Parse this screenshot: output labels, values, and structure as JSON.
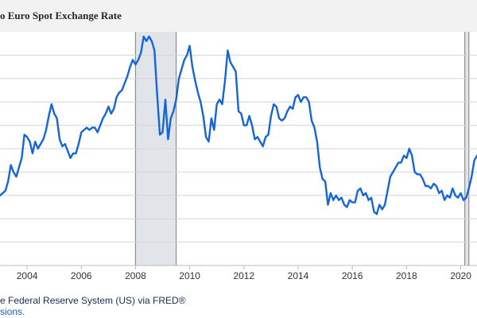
{
  "chart_data": {
    "type": "line",
    "title": "o Euro Spot Exchange Rate",
    "xlabel": "",
    "ylabel": "",
    "x_tick_labels": [
      "2004",
      "2006",
      "2008",
      "2010",
      "2012",
      "2014",
      "2016",
      "2018",
      "2020"
    ],
    "x_range": [
      2003.0,
      2020.6
    ],
    "y_range": [
      0,
      10
    ],
    "y_gridlines": [
      1,
      2,
      3,
      4,
      5,
      6,
      7,
      8,
      9
    ],
    "grid": true,
    "recession_bands": [
      [
        2008.0,
        2009.5
      ],
      [
        2020.15,
        2020.3
      ]
    ],
    "line_color": "#1565d8",
    "series": [
      {
        "values": [
          [
            2003.0,
            3.0
          ],
          [
            2003.1,
            3.1
          ],
          [
            2003.2,
            3.2
          ],
          [
            2003.3,
            3.6
          ],
          [
            2003.4,
            4.3
          ],
          [
            2003.5,
            4.0
          ],
          [
            2003.6,
            3.8
          ],
          [
            2003.7,
            4.2
          ],
          [
            2003.8,
            4.6
          ],
          [
            2003.9,
            5.6
          ],
          [
            2004.0,
            5.5
          ],
          [
            2004.1,
            5.3
          ],
          [
            2004.2,
            4.8
          ],
          [
            2004.3,
            5.3
          ],
          [
            2004.4,
            5.0
          ],
          [
            2004.5,
            5.2
          ],
          [
            2004.6,
            5.4
          ],
          [
            2004.7,
            5.8
          ],
          [
            2004.8,
            6.4
          ],
          [
            2004.9,
            6.9
          ],
          [
            2005.0,
            6.5
          ],
          [
            2005.1,
            6.3
          ],
          [
            2005.2,
            5.4
          ],
          [
            2005.3,
            5.1
          ],
          [
            2005.4,
            5.2
          ],
          [
            2005.5,
            4.9
          ],
          [
            2005.6,
            4.6
          ],
          [
            2005.7,
            4.8
          ],
          [
            2005.8,
            4.8
          ],
          [
            2005.9,
            5.2
          ],
          [
            2006.0,
            5.7
          ],
          [
            2006.1,
            5.8
          ],
          [
            2006.2,
            5.9
          ],
          [
            2006.3,
            5.8
          ],
          [
            2006.4,
            5.9
          ],
          [
            2006.5,
            5.9
          ],
          [
            2006.6,
            5.7
          ],
          [
            2006.7,
            6.0
          ],
          [
            2006.8,
            6.3
          ],
          [
            2006.9,
            6.5
          ],
          [
            2007.0,
            6.8
          ],
          [
            2007.1,
            6.5
          ],
          [
            2007.2,
            6.7
          ],
          [
            2007.3,
            7.2
          ],
          [
            2007.4,
            7.4
          ],
          [
            2007.5,
            7.5
          ],
          [
            2007.6,
            7.8
          ],
          [
            2007.7,
            8.1
          ],
          [
            2007.8,
            8.5
          ],
          [
            2007.9,
            8.8
          ],
          [
            2008.0,
            8.6
          ],
          [
            2008.1,
            8.8
          ],
          [
            2008.2,
            9.1
          ],
          [
            2008.3,
            9.8
          ],
          [
            2008.4,
            9.6
          ],
          [
            2008.5,
            9.8
          ],
          [
            2008.6,
            9.6
          ],
          [
            2008.7,
            9.2
          ],
          [
            2008.8,
            7.3
          ],
          [
            2008.9,
            5.6
          ],
          [
            2009.0,
            5.7
          ],
          [
            2009.1,
            7.1
          ],
          [
            2009.2,
            5.4
          ],
          [
            2009.3,
            6.3
          ],
          [
            2009.4,
            6.6
          ],
          [
            2009.5,
            7.1
          ],
          [
            2009.6,
            8.0
          ],
          [
            2009.7,
            8.4
          ],
          [
            2009.8,
            8.8
          ],
          [
            2009.9,
            9.0
          ],
          [
            2010.0,
            9.4
          ],
          [
            2010.1,
            8.5
          ],
          [
            2010.2,
            7.9
          ],
          [
            2010.3,
            7.4
          ],
          [
            2010.4,
            7.0
          ],
          [
            2010.5,
            6.4
          ],
          [
            2010.6,
            5.5
          ],
          [
            2010.7,
            5.3
          ],
          [
            2010.8,
            6.3
          ],
          [
            2010.9,
            5.8
          ],
          [
            2011.0,
            6.9
          ],
          [
            2011.1,
            7.1
          ],
          [
            2011.2,
            6.9
          ],
          [
            2011.3,
            7.9
          ],
          [
            2011.4,
            9.2
          ],
          [
            2011.5,
            8.7
          ],
          [
            2011.6,
            8.5
          ],
          [
            2011.7,
            8.3
          ],
          [
            2011.8,
            6.6
          ],
          [
            2011.9,
            6.5
          ],
          [
            2012.0,
            6.0
          ],
          [
            2012.1,
            6.0
          ],
          [
            2012.2,
            6.4
          ],
          [
            2012.3,
            6.0
          ],
          [
            2012.4,
            5.4
          ],
          [
            2012.5,
            5.5
          ],
          [
            2012.6,
            5.3
          ],
          [
            2012.7,
            5.1
          ],
          [
            2012.8,
            5.5
          ],
          [
            2012.9,
            5.6
          ],
          [
            2013.0,
            6.4
          ],
          [
            2013.1,
            6.9
          ],
          [
            2013.2,
            6.8
          ],
          [
            2013.3,
            6.3
          ],
          [
            2013.4,
            6.2
          ],
          [
            2013.5,
            6.3
          ],
          [
            2013.6,
            6.6
          ],
          [
            2013.7,
            6.8
          ],
          [
            2013.8,
            6.7
          ],
          [
            2013.9,
            7.2
          ],
          [
            2014.0,
            7.3
          ],
          [
            2014.1,
            7.0
          ],
          [
            2014.2,
            7.2
          ],
          [
            2014.3,
            7.2
          ],
          [
            2014.4,
            7.0
          ],
          [
            2014.5,
            6.2
          ],
          [
            2014.6,
            5.9
          ],
          [
            2014.7,
            5.3
          ],
          [
            2014.8,
            4.2
          ],
          [
            2014.9,
            3.7
          ],
          [
            2015.0,
            3.6
          ],
          [
            2015.1,
            2.6
          ],
          [
            2015.2,
            3.1
          ],
          [
            2015.3,
            2.8
          ],
          [
            2015.4,
            3.0
          ],
          [
            2015.5,
            2.8
          ],
          [
            2015.6,
            2.9
          ],
          [
            2015.7,
            2.6
          ],
          [
            2015.8,
            2.5
          ],
          [
            2015.9,
            2.8
          ],
          [
            2016.0,
            2.7
          ],
          [
            2016.1,
            2.7
          ],
          [
            2016.2,
            3.2
          ],
          [
            2016.3,
            3.3
          ],
          [
            2016.4,
            3.0
          ],
          [
            2016.5,
            3.1
          ],
          [
            2016.6,
            2.8
          ],
          [
            2016.7,
            2.9
          ],
          [
            2016.8,
            2.3
          ],
          [
            2016.9,
            2.2
          ],
          [
            2017.0,
            2.6
          ],
          [
            2017.1,
            2.4
          ],
          [
            2017.2,
            2.6
          ],
          [
            2017.3,
            3.2
          ],
          [
            2017.4,
            3.8
          ],
          [
            2017.5,
            4.0
          ],
          [
            2017.6,
            4.2
          ],
          [
            2017.7,
            4.4
          ],
          [
            2017.8,
            4.4
          ],
          [
            2017.9,
            4.7
          ],
          [
            2018.0,
            4.6
          ],
          [
            2018.1,
            5.0
          ],
          [
            2018.2,
            4.7
          ],
          [
            2018.3,
            4.0
          ],
          [
            2018.4,
            3.9
          ],
          [
            2018.5,
            3.9
          ],
          [
            2018.6,
            3.7
          ],
          [
            2018.7,
            3.4
          ],
          [
            2018.8,
            3.4
          ],
          [
            2018.9,
            3.3
          ],
          [
            2019.0,
            3.5
          ],
          [
            2019.1,
            3.4
          ],
          [
            2019.2,
            3.1
          ],
          [
            2019.3,
            3.2
          ],
          [
            2019.4,
            2.8
          ],
          [
            2019.5,
            3.0
          ],
          [
            2019.6,
            2.9
          ],
          [
            2019.7,
            3.3
          ],
          [
            2019.8,
            3.0
          ],
          [
            2019.9,
            2.9
          ],
          [
            2020.0,
            3.1
          ],
          [
            2020.1,
            2.8
          ],
          [
            2020.2,
            2.9
          ],
          [
            2020.3,
            3.3
          ],
          [
            2020.4,
            3.8
          ],
          [
            2020.5,
            4.5
          ],
          [
            2020.6,
            4.7
          ]
        ]
      }
    ]
  },
  "footer": {
    "source_text": "e Federal Reserve System (US) via FRED®",
    "link_text": "sions."
  }
}
